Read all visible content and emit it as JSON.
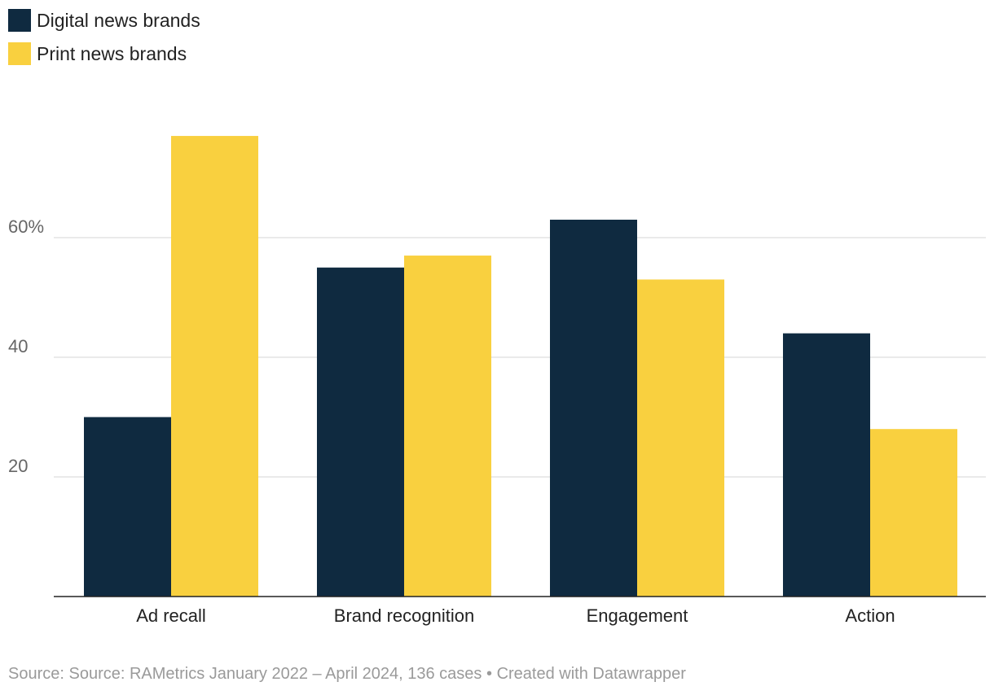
{
  "legend": [
    {
      "label": "Digital news brands",
      "color": "#0f2a40"
    },
    {
      "label": "Print news brands",
      "color": "#f9d03f"
    }
  ],
  "footer": {
    "source": "Source: Source: RAMetrics January 2022 – April 2024, 136 cases",
    "separator": "•",
    "credit": "Created with Datawrapper"
  },
  "chart_data": {
    "type": "bar",
    "title": "",
    "xlabel": "",
    "ylabel": "",
    "categories": [
      "Ad recall",
      "Brand recognition",
      "Engagement",
      "Action"
    ],
    "series": [
      {
        "name": "Digital news brands",
        "values": [
          30,
          55,
          63,
          44
        ],
        "color": "#0f2a40"
      },
      {
        "name": "Print news brands",
        "values": [
          77,
          57,
          53,
          28
        ],
        "color": "#f9d03f"
      }
    ],
    "ylim": [
      0,
      80
    ],
    "yticks": [
      20,
      40,
      60
    ],
    "ytick_labels": [
      "20",
      "40",
      "60%"
    ],
    "grid": true,
    "legend_position": "top-left"
  }
}
